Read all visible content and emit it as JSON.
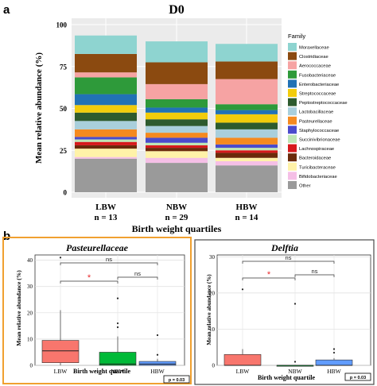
{
  "panel_a": {
    "letter": "a",
    "chart_data": {
      "type": "bar",
      "stacked": true,
      "title": "D0",
      "xlabel": "Birth weight quartiles",
      "ylabel": "Mean relative abundance (%)",
      "ylim": [
        0,
        100
      ],
      "yticks": [
        "0",
        "25",
        "50",
        "75",
        "100"
      ],
      "categories": [
        "LBW",
        "NBW",
        "HBW"
      ],
      "category_counts": [
        "n = 13",
        "n = 29",
        "n = 14"
      ],
      "legend_title": "Family",
      "legend_position": "right",
      "series": [
        {
          "name": "Moraxellaceae",
          "color": "#8ED4D0",
          "values": [
            11,
            12.5,
            10.5
          ]
        },
        {
          "name": "Clostridiaceae",
          "color": "#8B4A10",
          "values": [
            11,
            13,
            10.5
          ]
        },
        {
          "name": "Aerococcaceae",
          "color": "#F6A3A3",
          "values": [
            3,
            9,
            15
          ]
        },
        {
          "name": "Fusobacteriaceae",
          "color": "#2E9A3A",
          "values": [
            10,
            5,
            3.5
          ]
        },
        {
          "name": "Enterobacteriaceae",
          "color": "#2172B5",
          "values": [
            6.5,
            3,
            2.5
          ]
        },
        {
          "name": "Streptococcaceae",
          "color": "#F2CC0C",
          "values": [
            4.5,
            4,
            5
          ]
        },
        {
          "name": "Peptostreptococcaceae",
          "color": "#2E5B2E",
          "values": [
            5,
            4,
            4
          ]
        },
        {
          "name": "Lactobacillaceae",
          "color": "#A9CFDC",
          "values": [
            5,
            4,
            5
          ]
        },
        {
          "name": "Pasteurellaceae",
          "color": "#F58A1F",
          "values": [
            4.5,
            3,
            4
          ]
        },
        {
          "name": "Staphylococcaceae",
          "color": "#4B4BCC",
          "values": [
            1.5,
            3,
            2
          ]
        },
        {
          "name": "Succinivibrionaceae",
          "color": "#BFE6B5",
          "values": [
            1.5,
            1.5,
            1.5
          ]
        },
        {
          "name": "Lachnospiraceae",
          "color": "#D7191C",
          "values": [
            2,
            1.5,
            1.5
          ]
        },
        {
          "name": "Bacteroidaceae",
          "color": "#6B2A0B",
          "values": [
            2,
            2,
            3
          ]
        },
        {
          "name": "Turicibacteraceae",
          "color": "#FFF2A8",
          "values": [
            5,
            4,
            2
          ]
        },
        {
          "name": "Bifidobacteriaceae",
          "color": "#F5BFE6",
          "values": [
            1,
            3,
            2.5
          ]
        },
        {
          "name": "Other",
          "color": "#9A9A9A",
          "values": [
            20,
            17.5,
            16
          ]
        }
      ]
    }
  },
  "panel_b": {
    "letter": "b",
    "charts": [
      {
        "chart_data": {
          "type": "box",
          "title": "Pasteurellaceae",
          "xlabel": "Birth weight quartile",
          "ylabel": "Mean relative abundance (%)",
          "ylim": [
            0,
            42
          ],
          "yticks": [
            0,
            10,
            20,
            30,
            40
          ],
          "categories": [
            "LBW",
            "NBW",
            "HBW"
          ],
          "colors": [
            "#F8766D",
            "#00BA38",
            "#619CFF"
          ],
          "boxes": [
            {
              "min": 0,
              "q1": 1,
              "median": 5.5,
              "q3": 9.5,
              "max": 21,
              "outliers": [
                41
              ]
            },
            {
              "min": 0,
              "q1": 0,
              "median": 0.5,
              "q3": 5,
              "max": 11,
              "outliers": [
                14.5,
                16,
                25.5
              ]
            },
            {
              "min": 0,
              "q1": 0,
              "median": 0.5,
              "q3": 1.5,
              "max": 2.5,
              "outliers": [
                4,
                11.5
              ]
            }
          ],
          "comparisons": [
            {
              "label": "ns",
              "from": "LBW",
              "to": "HBW"
            },
            {
              "label": "*",
              "from": "LBW",
              "to": "NBW"
            },
            {
              "label": "ns",
              "from": "NBW",
              "to": "HBW"
            }
          ],
          "p_label": "p = 0.03"
        }
      },
      {
        "chart_data": {
          "type": "box",
          "title": "Delftia",
          "xlabel": "Birth weight quartile",
          "ylabel": "Mean relative abundance (%)",
          "ylim": [
            0,
            30.5
          ],
          "yticks": [
            0,
            10,
            20,
            30
          ],
          "categories": [
            "LBW",
            "NBW",
            "HBW"
          ],
          "colors": [
            "#F8766D",
            "#00BA38",
            "#619CFF"
          ],
          "boxes": [
            {
              "min": 0,
              "q1": 0,
              "median": 0,
              "q3": 3,
              "max": 4.5,
              "outliers": [
                21
              ]
            },
            {
              "min": 0,
              "q1": 0,
              "median": 0,
              "q3": 0,
              "max": 0,
              "outliers": [
                1,
                17
              ]
            },
            {
              "min": 0,
              "q1": 0,
              "median": 0,
              "q3": 1.5,
              "max": 2,
              "outliers": [
                3.5,
                4.5
              ]
            }
          ],
          "comparisons": [
            {
              "label": "ns",
              "from": "LBW",
              "to": "HBW"
            },
            {
              "label": "*",
              "from": "LBW",
              "to": "NBW"
            },
            {
              "label": "ns",
              "from": "NBW",
              "to": "HBW"
            }
          ],
          "p_label": "p = 0.03"
        }
      }
    ]
  }
}
